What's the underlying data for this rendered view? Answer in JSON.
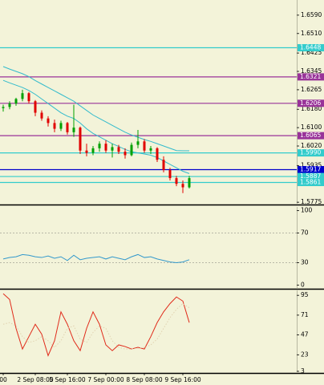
{
  "chart_data": [
    {
      "type": "candlestick",
      "categories": [
        "00",
        null,
        null,
        null,
        null,
        "2 Sep 08:00",
        null,
        null,
        null,
        null,
        "5 Sep 16:00",
        null,
        null,
        null,
        null,
        null,
        "7 Sep 00:00",
        null,
        null,
        null,
        null,
        null,
        "8 Sep 08:00",
        null,
        null,
        null,
        null,
        null,
        "9 Sep 16:00",
        null
      ],
      "open": [
        1.6185,
        1.619,
        1.6205,
        1.6225,
        1.625,
        1.6215,
        1.6165,
        1.614,
        1.612,
        1.6095,
        1.612,
        1.608,
        1.61,
        1.6,
        1.599,
        1.601,
        1.603,
        1.6,
        1.6015,
        1.5995,
        1.598,
        1.6025,
        1.604,
        1.6,
        1.601,
        1.596,
        1.5915,
        1.588,
        1.5855,
        1.584
      ],
      "high": [
        1.62,
        1.6215,
        1.623,
        1.6265,
        1.6255,
        1.622,
        1.6175,
        1.615,
        1.6135,
        1.613,
        1.6125,
        1.62,
        1.6105,
        1.603,
        1.602,
        1.604,
        1.6045,
        1.603,
        1.6025,
        1.601,
        1.6035,
        1.609,
        1.605,
        1.602,
        1.6015,
        1.5975,
        1.5925,
        1.589,
        1.587,
        1.589
      ],
      "low": [
        1.617,
        1.618,
        1.6195,
        1.6215,
        1.6205,
        1.615,
        1.613,
        1.6105,
        1.608,
        1.6085,
        1.607,
        1.606,
        1.5985,
        1.5975,
        1.598,
        1.5995,
        1.599,
        1.597,
        1.5985,
        1.5965,
        1.5975,
        1.601,
        1.599,
        1.5985,
        1.595,
        1.5905,
        1.587,
        1.5845,
        1.5815,
        1.5835
      ],
      "close": [
        1.619,
        1.6205,
        1.6225,
        1.625,
        1.6215,
        1.6165,
        1.614,
        1.612,
        1.6095,
        1.612,
        1.608,
        1.61,
        1.6,
        1.599,
        1.601,
        1.603,
        1.6,
        1.6015,
        1.5995,
        1.598,
        1.6025,
        1.604,
        1.6,
        1.601,
        1.596,
        1.5915,
        1.588,
        1.5855,
        1.584,
        1.588
      ],
      "up_color": "#00a000",
      "down_color": "#e00000",
      "lines": [
        {
          "color": "#33bbcc",
          "values": [
            1.6366,
            1.6355,
            1.6345,
            1.6335,
            1.6322,
            1.6305,
            1.629,
            1.6275,
            1.626,
            1.6245,
            1.623,
            1.6215,
            1.6195,
            1.6175,
            1.6155,
            1.614,
            1.6125,
            1.611,
            1.6095,
            1.608,
            1.6068,
            1.6058,
            1.6048,
            1.604,
            1.603,
            1.602,
            1.601,
            1.6,
            1.5999,
            1.5999
          ]
        },
        {
          "color": "#33bbcc",
          "values": [
            1.6306,
            1.6295,
            1.6285,
            1.6275,
            1.6262,
            1.6245,
            1.6225,
            1.6205,
            1.6185,
            1.6165,
            1.615,
            1.614,
            1.612,
            1.6095,
            1.6075,
            1.606,
            1.6045,
            1.603,
            1.6018,
            1.6005,
            1.5995,
            1.599,
            1.5985,
            1.598,
            1.597,
            1.5955,
            1.594,
            1.5925,
            1.591,
            1.59
          ]
        }
      ],
      "levels": [
        {
          "value": 1.6448,
          "label": "1.6448",
          "color": "#33cccc"
        },
        {
          "value": 1.6321,
          "label": "1.6321",
          "color": "#993399"
        },
        {
          "value": 1.6206,
          "label": "1.6206",
          "color": "#993399"
        },
        {
          "value": 1.6065,
          "label": "1.6065",
          "color": "#993399"
        },
        {
          "value": 1.599,
          "label": "1.5990",
          "color": "#33cccc"
        },
        {
          "value": 1.5917,
          "label": "1.5917",
          "color": "#0000cc"
        },
        {
          "value": 1.5887,
          "label": "1.5887",
          "color": "#33cccc"
        },
        {
          "value": 1.5861,
          "label": "1.5861",
          "color": "#33cccc"
        }
      ],
      "ylim": [
        1.5765,
        1.6656
      ],
      "yticks": [
        {
          "value": 1.659,
          "label": "1.6590"
        },
        {
          "value": 1.651,
          "label": "1.6510"
        },
        {
          "value": 1.6425,
          "label": "1.6425"
        },
        {
          "value": 1.6345,
          "label": "1.6345"
        },
        {
          "value": 1.6265,
          "label": "1.6265"
        },
        {
          "value": 1.618,
          "label": "1.6180"
        },
        {
          "value": 1.61,
          "label": "1.6100"
        },
        {
          "value": 1.602,
          "label": "1.6020"
        },
        {
          "value": 1.5935,
          "label": "1.5935"
        },
        {
          "value": 1.5775,
          "label": "1.5775"
        }
      ]
    },
    {
      "type": "line",
      "series": [
        {
          "color": "#3399cc",
          "values": [
            35,
            37,
            38,
            41,
            40,
            38,
            37,
            39,
            36,
            38,
            33,
            40,
            34,
            36,
            37,
            38,
            35,
            38,
            36,
            34,
            38,
            41,
            37,
            38,
            35,
            33,
            31,
            30,
            31,
            34
          ]
        }
      ],
      "levels": [
        70,
        30
      ],
      "ylim": [
        -5,
        105
      ],
      "yticks": [
        100,
        70,
        30,
        0
      ]
    },
    {
      "type": "line",
      "series": [
        {
          "color": "#e02a1a",
          "values": [
            97,
            90,
            55,
            30,
            45,
            60,
            48,
            22,
            40,
            75,
            60,
            40,
            28,
            55,
            75,
            60,
            35,
            28,
            35,
            33,
            30,
            32,
            30,
            45,
            62,
            75,
            85,
            93,
            88,
            62
          ]
        },
        {
          "color": "#e0d2b0",
          "dotted": true,
          "values": [
            60,
            62,
            58,
            45,
            38,
            40,
            45,
            40,
            32,
            40,
            55,
            58,
            42,
            38,
            50,
            58,
            55,
            40,
            32,
            30,
            30,
            31,
            32,
            35,
            42,
            55,
            68,
            78,
            85,
            80
          ]
        }
      ],
      "ylim": [
        1,
        101
      ],
      "yticks": [
        95,
        71,
        47,
        23,
        3
      ]
    }
  ]
}
